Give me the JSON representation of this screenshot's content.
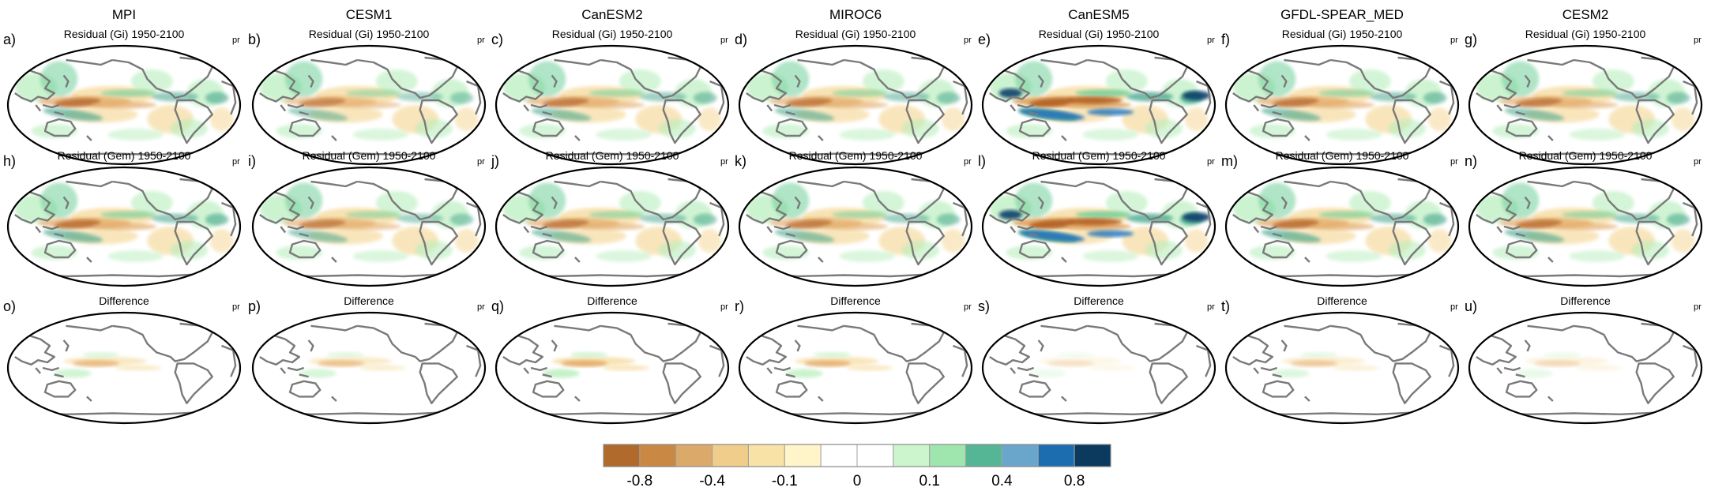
{
  "figure": {
    "models": [
      "MPI",
      "CESM1",
      "CanESM2",
      "MIROC6",
      "CanESM5",
      "GFDL-SPEAR_MED",
      "CESM2"
    ],
    "variable": "pr",
    "rows": [
      {
        "title": "Residual (Gi) 1950-2100",
        "letters": [
          "a)",
          "b)",
          "c)",
          "d)",
          "e)",
          "f)",
          "g)"
        ]
      },
      {
        "title": "Residual (Gem) 1950-2100",
        "letters": [
          "h)",
          "i)",
          "j)",
          "k)",
          "l)",
          "m)",
          "n)"
        ]
      },
      {
        "title": "Difference",
        "letters": [
          "o)",
          "p)",
          "q)",
          "r)",
          "s)",
          "t)",
          "u)"
        ]
      }
    ],
    "colorbar": {
      "colors": [
        "#b06a2c",
        "#c98945",
        "#dbaa6a",
        "#f0cd8a",
        "#f8e2a6",
        "#fff5c8",
        "#ffffff",
        "#ffffff",
        "#cdf5cd",
        "#9ee6ae",
        "#55b696",
        "#6aa6cc",
        "#1c6db0",
        "#0b3a5e"
      ],
      "tick_labels": [
        "-0.8",
        "-0.4",
        "-0.1",
        "0",
        "0.1",
        "0.4",
        "0.8"
      ]
    },
    "palette": {
      "brown": "#b5662a",
      "tan": "#e3ab6a",
      "lighttan": "#f6dba0",
      "lightgreen": "#b7eebc",
      "green": "#6fcf9a",
      "teal": "#4aa88e",
      "blue": "#2a78b8",
      "darkblue": "#0d3f6b",
      "coast": "#7a7a7a"
    },
    "strength": [
      [
        0.9,
        0.7,
        0.8,
        0.8,
        1.2,
        0.85,
        0.8
      ],
      [
        0.9,
        0.75,
        0.8,
        0.8,
        1.2,
        0.9,
        0.85
      ],
      [
        0.4,
        0.35,
        0.5,
        0.45,
        0.15,
        0.3,
        0.2
      ]
    ]
  }
}
